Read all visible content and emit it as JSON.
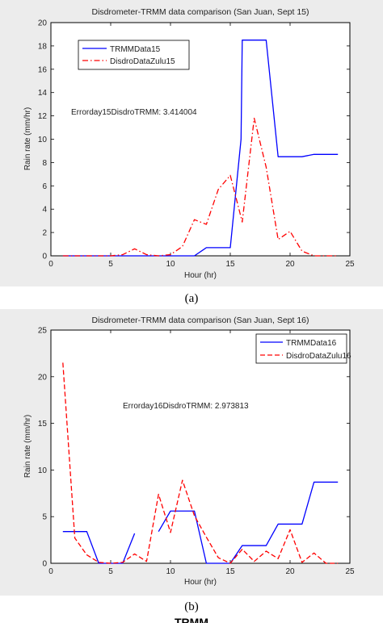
{
  "captions": [
    "(a)",
    "(b)"
  ],
  "bottom_fragment": "... TRMM ...",
  "chart_data": [
    {
      "type": "line",
      "title": "Disdrometer-TRMM data comparison (San Juan, Sept 15)",
      "xlabel": "Hour (hr)",
      "ylabel": "Rain rate (mm/hr)",
      "xlim": [
        0,
        25
      ],
      "ylim": [
        0,
        20
      ],
      "xticks": [
        0,
        5,
        10,
        15,
        20,
        25
      ],
      "yticks": [
        0,
        2,
        4,
        6,
        8,
        10,
        12,
        14,
        16,
        18,
        20
      ],
      "grid": false,
      "legend_position": "top-left",
      "annotation": "Errorday15DisdroTRMM: 3.414004",
      "series": [
        {
          "name": "TRMMData15",
          "color": "#0000ff",
          "style": "solid",
          "x": [
            1,
            2,
            3,
            4,
            5,
            6,
            7,
            8,
            9,
            10,
            11,
            12,
            13,
            14,
            15,
            15.9,
            16,
            17,
            18,
            19,
            20,
            21,
            22,
            23,
            24
          ],
          "y": [
            0,
            0,
            0,
            0,
            0,
            0,
            0,
            0,
            0,
            0,
            0,
            0,
            0.7,
            0.7,
            0.7,
            10,
            18.5,
            18.5,
            18.5,
            8.5,
            8.5,
            8.5,
            8.7,
            8.7,
            8.7
          ]
        },
        {
          "name": "DisdroDataZulu15",
          "color": "#ff0000",
          "style": "dashdot",
          "x": [
            1,
            2,
            3,
            4,
            5,
            6,
            7,
            8,
            9,
            10,
            11,
            12,
            12.5,
            13,
            14,
            15,
            16,
            17,
            18,
            19,
            20,
            21,
            22,
            23,
            24
          ],
          "y": [
            0,
            0,
            0,
            0,
            0,
            0.1,
            0.6,
            0.1,
            0,
            0.1,
            0.8,
            3.1,
            2.9,
            2.7,
            5.7,
            6.9,
            2.9,
            11.8,
            7.6,
            1.4,
            2.1,
            0.4,
            0,
            0,
            0
          ]
        }
      ]
    },
    {
      "type": "line",
      "title": "Disdrometer-TRMM data comparison (San Juan, Sept 16)",
      "xlabel": "Hour (hr)",
      "ylabel": "Rain rate (mm/hr)",
      "xlim": [
        0,
        25
      ],
      "ylim": [
        0,
        25
      ],
      "xticks": [
        0,
        5,
        10,
        15,
        20,
        25
      ],
      "yticks": [
        0,
        5,
        10,
        15,
        20,
        25
      ],
      "grid": false,
      "legend_position": "top-right",
      "annotation": "Errorday16DisdroTRMM: 2.973813",
      "series": [
        {
          "name": "TRMMData16",
          "color": "#0000ff",
          "style": "solid",
          "x": [
            1,
            2,
            3,
            4,
            5,
            6,
            7,
            8,
            9,
            10,
            11,
            12,
            13,
            14,
            15,
            16,
            17,
            18,
            19,
            20,
            21,
            22,
            23,
            24
          ],
          "y": [
            3.4,
            3.4,
            3.4,
            0,
            0,
            0,
            3.2,
            null,
            3.4,
            5.6,
            5.6,
            5.6,
            0,
            0,
            0,
            1.9,
            1.9,
            1.9,
            4.2,
            4.2,
            4.2,
            8.7,
            8.7,
            8.7
          ]
        },
        {
          "name": "DisdroDataZulu16",
          "color": "#ff0000",
          "style": "dashed",
          "x": [
            1,
            2,
            3,
            4,
            5,
            6,
            7,
            8,
            9,
            10,
            11,
            12,
            13,
            14,
            15,
            16,
            17,
            18,
            19,
            20,
            21,
            22,
            23,
            24
          ],
          "y": [
            21.5,
            2.7,
            0.9,
            0.1,
            0,
            0.1,
            1,
            0.2,
            7.4,
            3.3,
            8.9,
            5.1,
            2.8,
            0.6,
            0,
            1.5,
            0.2,
            1.3,
            0.5,
            3.6,
            0.1,
            1.1,
            0,
            0
          ]
        }
      ]
    }
  ]
}
